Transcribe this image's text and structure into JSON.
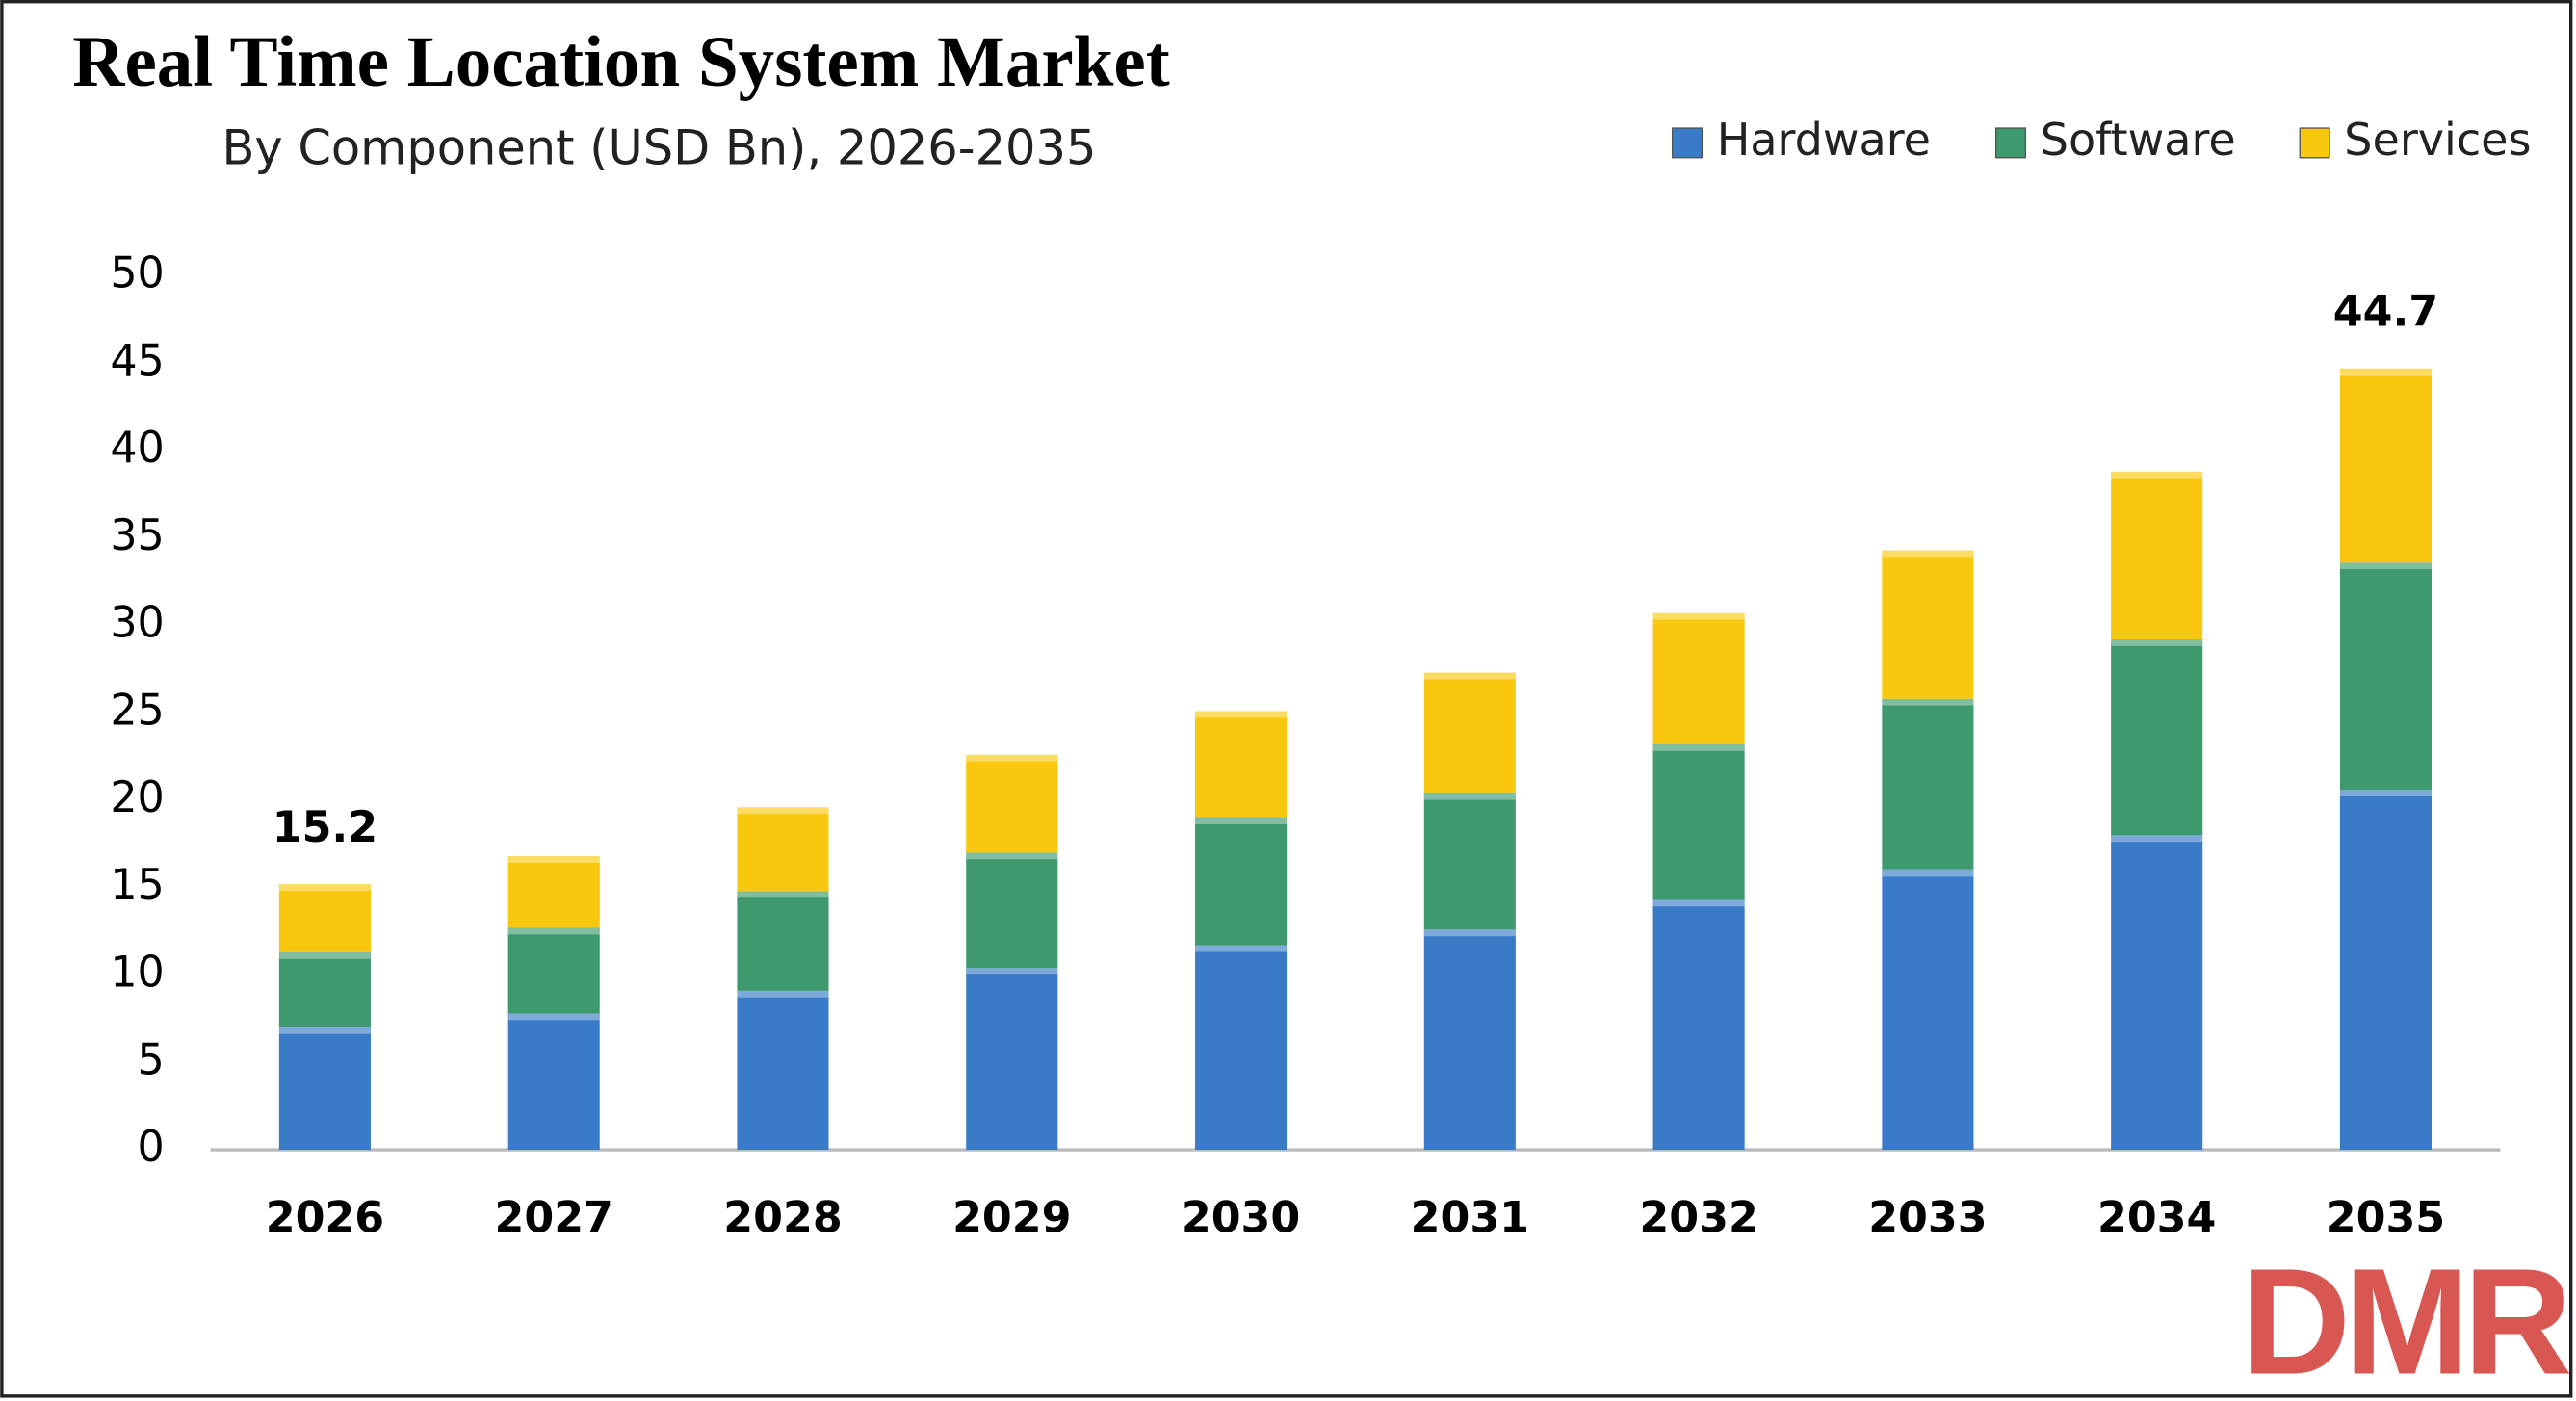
{
  "chart_data": {
    "type": "stacked_bar",
    "title": "Real Time Location System Market",
    "subtitle": "By Component (USD Bn), 2026-2035",
    "categories": [
      "2026",
      "2027",
      "2028",
      "2029",
      "2030",
      "2031",
      "2032",
      "2033",
      "2034",
      "2035"
    ],
    "series": [
      {
        "name": "Hardware",
        "color": "#3a7bc8",
        "values": [
          7.0,
          7.8,
          9.1,
          10.4,
          11.7,
          12.6,
          14.3,
          16.0,
          18.0,
          20.6
        ]
      },
      {
        "name": "Software",
        "color": "#3e9a6e",
        "values": [
          4.3,
          4.9,
          5.7,
          6.6,
          7.3,
          7.8,
          8.9,
          9.8,
          11.2,
          13.0
        ]
      },
      {
        "name": "Services",
        "color": "#f9c80e",
        "values": [
          3.9,
          4.1,
          4.8,
          5.6,
          6.1,
          6.9,
          7.5,
          8.5,
          9.6,
          11.1
        ]
      }
    ],
    "total_labels": [
      15.2,
      null,
      null,
      null,
      null,
      null,
      null,
      null,
      null,
      44.7
    ],
    "ylim": [
      0,
      50
    ],
    "yticks": [
      0,
      5,
      10,
      15,
      20,
      25,
      30,
      35,
      40,
      45,
      50
    ],
    "grid": false,
    "legend": "top-right",
    "logo": "DMR"
  }
}
